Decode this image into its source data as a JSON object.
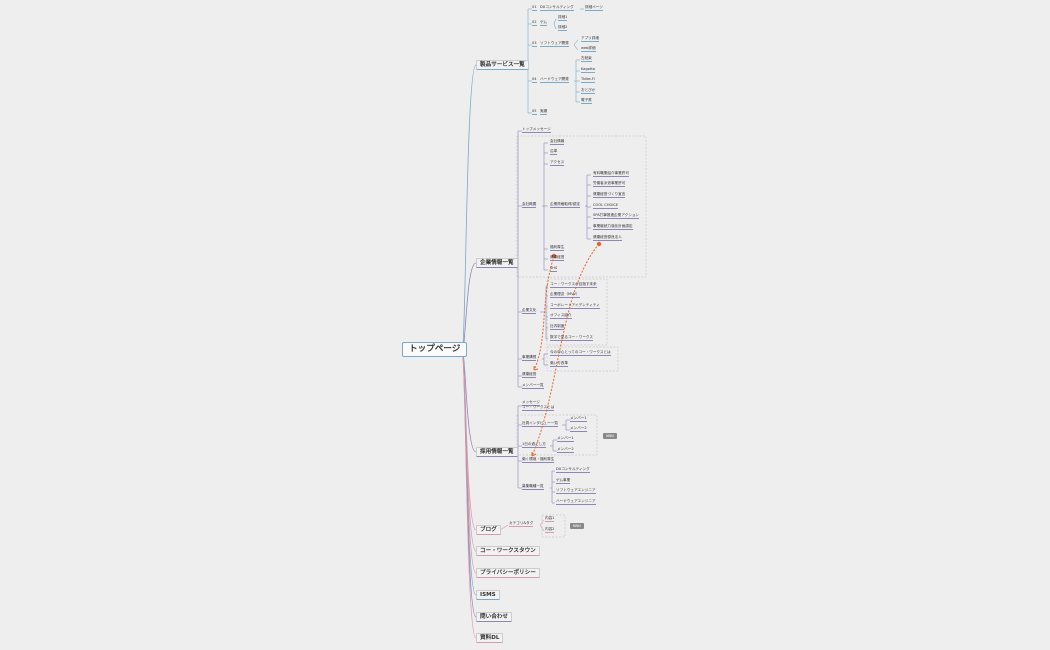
{
  "root": "トップページ",
  "colors": {
    "blue": "#7aa9c9",
    "purple": "#8e86b8",
    "pink": "#d99aa8",
    "dashed": "#e8642c"
  },
  "products": {
    "title": "製品サービス一覧",
    "items": [
      {
        "num": "01",
        "label": "DXコンサルティング",
        "child": "詳細ページ"
      },
      {
        "num": "02",
        "label": "ゲム",
        "children": [
          "詳細1",
          "詳細2"
        ]
      },
      {
        "num": "03",
        "label": "ソフトウェア開発",
        "children": [
          "アプリ詳細",
          "web詳細"
        ]
      },
      {
        "num": "04",
        "label": "ハードウェア開発",
        "children": [
          "古紙束",
          "Kagotta",
          "Tbike-Fi",
          "おとぴか",
          "電子書"
        ]
      },
      {
        "num": "05",
        "label": "実績"
      }
    ]
  },
  "company": {
    "title": "企業情報一覧",
    "top_message": "トップメッセージ",
    "overview": "会社概要",
    "overview_items": [
      "会社情報",
      "沿革",
      "アクセス"
    ],
    "cert_parent": "企業資格取得/認定",
    "certs": [
      "有料職業紹介事業許可",
      "労働者派遣事業許可",
      "健康経営づくり宣言",
      "COOL CHOICE",
      "SPA打撃推進企業アクション",
      "事業継続力強化計画認定",
      "健康経営優良法人"
    ],
    "welfare": [
      "福利厚生",
      "健康経営",
      "SHS"
    ],
    "culture": "企業文化",
    "culture_items": [
      "コー・ワークスが目指す未来",
      "企業理念（MVV）",
      "コーポレートアイデンティティ",
      "オフィス紹介",
      "社内制度",
      "数字で見るコー・ワークス"
    ],
    "vision": "事業構想",
    "vision_items": [
      "今の中心とってのコー・ワークスとは",
      "働い方改革"
    ],
    "health": "健康経営",
    "members": "メンバー一覧"
  },
  "recruit": {
    "title": "採用情報一覧",
    "message": "メッセージ",
    "message2": "コー・ワークスとは",
    "interview": "社員インタビュー一覧",
    "interview_items": [
      "メンバー1",
      "メンバー2"
    ],
    "day": "1日の過ごし方",
    "day_items": [
      "メンバー1",
      "メンバー2"
    ],
    "badge": "NNN",
    "work": "働く環境・福利厚生",
    "jobs": "募集職種一覧",
    "job_items": [
      "DXコンサルティング",
      "ゲム事業",
      "ソフトウェアエンジニア",
      "ハードウェアエンジニア"
    ]
  },
  "blog": {
    "title": "ブログ",
    "category": "カテゴリ&タグ",
    "items": [
      "内容1",
      "内容2"
    ],
    "badge": "NNN"
  },
  "town": "コー・ワークスタウン",
  "privacy": "プライバシーポリシー",
  "isms": "ISMS",
  "contact": "問い合わせ",
  "download": "資料DL"
}
